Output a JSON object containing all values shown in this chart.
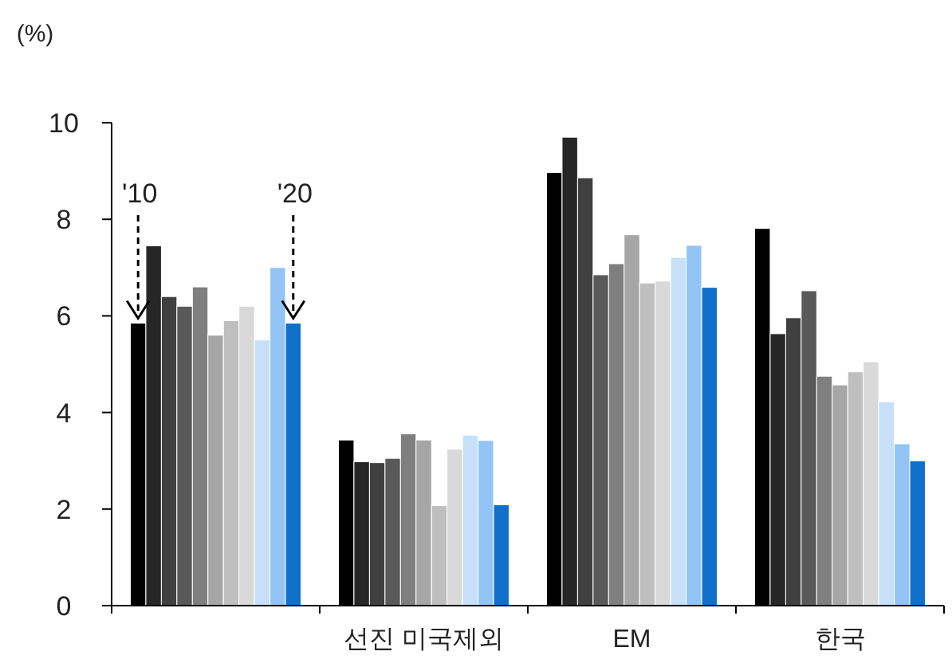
{
  "chart_data": {
    "type": "bar",
    "ylabel": "(%)",
    "categories": [
      null,
      "선진 미국제외",
      "EM",
      "한국"
    ],
    "series": [
      {
        "color": "#000000",
        "values": [
          5.85,
          3.43,
          8.97,
          7.81
        ]
      },
      {
        "color": "#262626",
        "values": [
          7.45,
          2.98,
          9.7,
          5.63
        ]
      },
      {
        "color": "#404040",
        "values": [
          6.4,
          2.96,
          8.86,
          5.96
        ]
      },
      {
        "color": "#595959",
        "values": [
          6.2,
          3.05,
          6.85,
          6.52
        ]
      },
      {
        "color": "#7f7f7f",
        "values": [
          6.6,
          3.56,
          7.08,
          4.75
        ]
      },
      {
        "color": "#a6a6a6",
        "values": [
          5.6,
          3.43,
          7.68,
          4.57
        ]
      },
      {
        "color": "#bfbfbf",
        "values": [
          5.9,
          2.07,
          6.68,
          4.84
        ]
      },
      {
        "color": "#d9d9d9",
        "values": [
          6.2,
          3.24,
          6.72,
          5.05
        ]
      },
      {
        "color": "#c5e0f8",
        "values": [
          5.5,
          3.53,
          7.21,
          4.22
        ]
      },
      {
        "color": "#92c5f5",
        "values": [
          7.0,
          3.42,
          7.46,
          3.35
        ]
      },
      {
        "color": "#1170c9",
        "values": [
          5.85,
          2.09,
          6.59,
          3.0
        ]
      }
    ],
    "ylim": [
      0,
      10
    ],
    "yticks": [
      0,
      2,
      4,
      6,
      8,
      10
    ],
    "annotations": [
      {
        "text": "'10",
        "y": 5.85
      },
      {
        "text": "'20",
        "y": 5.85
      }
    ]
  }
}
